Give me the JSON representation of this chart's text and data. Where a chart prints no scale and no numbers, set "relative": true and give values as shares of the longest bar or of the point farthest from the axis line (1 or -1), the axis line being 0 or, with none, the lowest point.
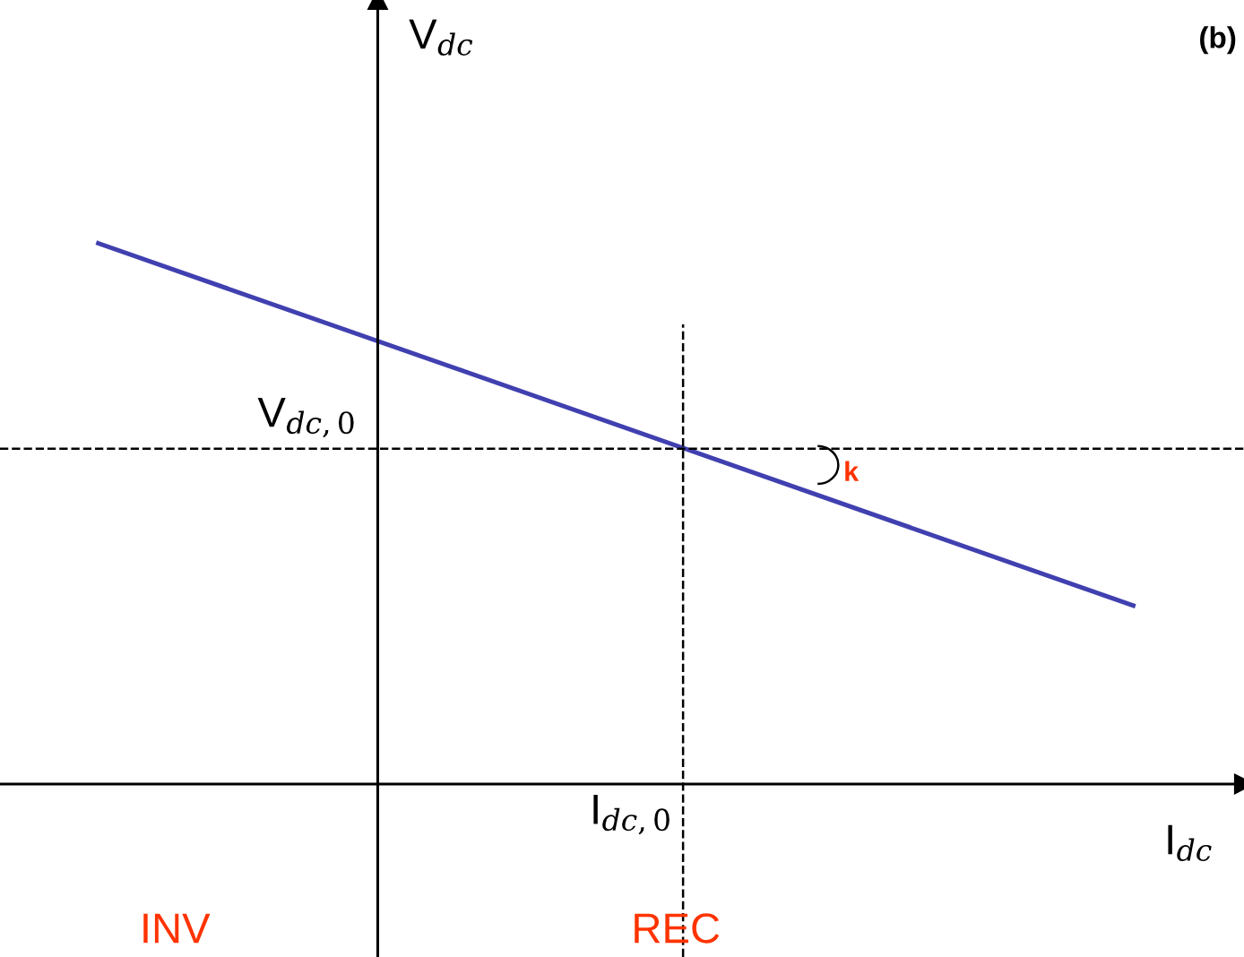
{
  "chart_data": {
    "type": "line",
    "relative": true,
    "categories": [
      null,
      null
    ],
    "series": [
      {
        "color": "#4040b0",
        "values": [
          1.0,
          0.33
        ]
      }
    ],
    "xlabel": "I$_{dc}$",
    "ylabel": "V$_{dc}$",
    "ref_lines": [
      {
        "axis": "y",
        "value": 0.62,
        "label": "V$_{dc,0}$",
        "line_style": "dashed",
        "color": "#000000"
      }
    ],
    "annotations": [
      "(b)",
      "k",
      "INV",
      "REC",
      "I$_{dc,0}$"
    ],
    "legend": false
  }
}
